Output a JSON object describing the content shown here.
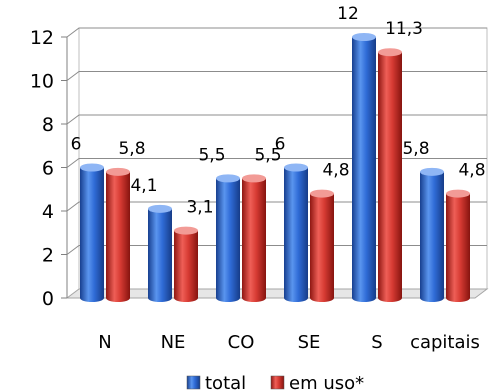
{
  "chart_data": {
    "type": "bar",
    "categories": [
      "N",
      "NE",
      "CO",
      "SE",
      "S",
      "capitais"
    ],
    "series": [
      {
        "name": "total",
        "values": [
          6,
          4.1,
          5.5,
          6,
          12,
          5.8
        ],
        "labels": [
          "6",
          "4,1",
          "5,5",
          "6",
          "12",
          "5,8"
        ],
        "color": "#2f6bd6"
      },
      {
        "name": "em uso*",
        "values": [
          5.8,
          3.1,
          5.5,
          4.8,
          11.3,
          4.8
        ],
        "labels": [
          "5,8",
          "3,1",
          "5,5",
          "4,8",
          "11,3",
          "4,8"
        ],
        "color": "#d63a33"
      }
    ],
    "yticks": [
      "0",
      "2",
      "4",
      "6",
      "8",
      "10",
      "12"
    ],
    "ylim": [
      0,
      12
    ],
    "grid": true,
    "legend_position": "bottom",
    "title": "",
    "xlabel": "",
    "ylabel": ""
  }
}
